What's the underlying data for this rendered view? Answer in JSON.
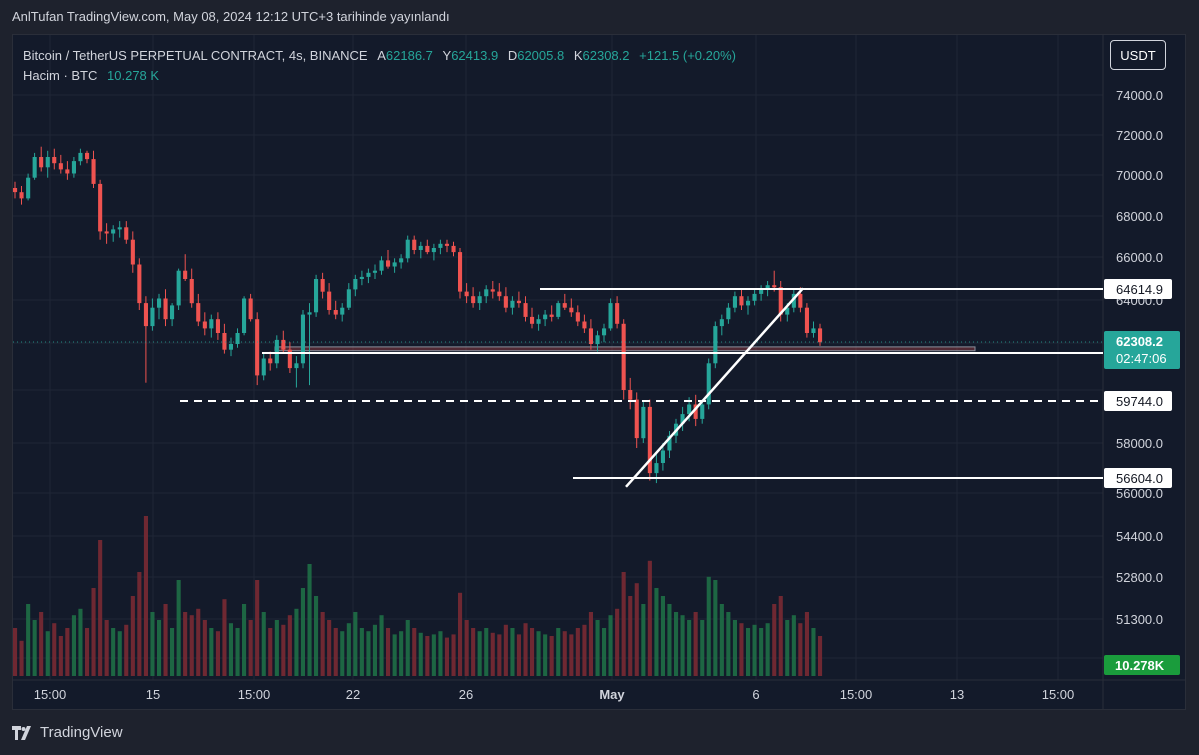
{
  "header": {
    "published": "AnlTufan TradingView.com, May 08, 2024 12:12 UTC+3 tarihinde yayınlandı"
  },
  "legend": {
    "symbol": "Bitcoin / TetherUS PERPETUAL CONTRACT, 4s, BINANCE",
    "open_label": "A",
    "open": "62186.7",
    "high_label": "Y",
    "high": "62413.9",
    "low_label": "D",
    "low": "62005.8",
    "close_label": "K",
    "close": "62308.2",
    "change": "+121.5 (+0.20%)",
    "volume_label": "Hacim · BTC",
    "volume": "10.278 K"
  },
  "currency_button": "USDT",
  "footer": {
    "brand": "TradingView"
  },
  "colors": {
    "up": "#26a69a",
    "down": "#ef5350",
    "background": "#131a2a",
    "axis_text": "#d1d4dc",
    "price_badge": "#26a69a",
    "volume_badge": "#1a9c3c"
  },
  "chart_data": {
    "type": "candlestick",
    "timeframe": "4h",
    "y_ticks": [
      74000,
      72000,
      70000,
      68000,
      66000,
      64000,
      58000,
      56000,
      54400,
      52800,
      51300
    ],
    "y_tick_labels": [
      "74000.0",
      "72000.0",
      "70000.0",
      "68000.0",
      "66000.0",
      "64000.0",
      "58000.0",
      "56000.0",
      "54400.0",
      "52800.0",
      "51300.0"
    ],
    "x_ticks": [
      "15:00",
      "15",
      "15:00",
      "22",
      "26",
      "May",
      "6",
      "15:00",
      "13",
      "15:00"
    ],
    "price_labels": [
      {
        "value": 64614.9,
        "text": "64614.9"
      },
      {
        "value": 61726.6,
        "text": "61726.6"
      },
      {
        "value": 59744.0,
        "text": "59744.0"
      },
      {
        "value": 56604.0,
        "text": "56604.0"
      }
    ],
    "current_price": {
      "value": 62308.2,
      "text": "62308.2",
      "countdown": "02:47:06"
    },
    "volume_badge": "10.278K",
    "horizontal_lines": [
      {
        "value": 64614.9,
        "style": "solid"
      },
      {
        "value": 61726.6,
        "style": "solid"
      },
      {
        "value": 59744.0,
        "style": "dashed"
      },
      {
        "value": 56604.0,
        "style": "solid"
      }
    ],
    "trendline": {
      "from": {
        "price": 56250
      },
      "to": {
        "price": 64650
      }
    },
    "support_zone": {
      "top": 62050,
      "bottom": 61850
    },
    "candles": [
      [
        69500,
        69800,
        69000,
        69300
      ],
      [
        69300,
        69600,
        68700,
        69000
      ],
      [
        69000,
        70200,
        68900,
        70000
      ],
      [
        70000,
        71200,
        69900,
        71000
      ],
      [
        71000,
        71500,
        70300,
        70500
      ],
      [
        70500,
        71300,
        70000,
        71000
      ],
      [
        71000,
        71400,
        70400,
        70700
      ],
      [
        70700,
        71100,
        70200,
        70400
      ],
      [
        70400,
        70800,
        69900,
        70200
      ],
      [
        70200,
        71000,
        70000,
        70800
      ],
      [
        70800,
        71400,
        70600,
        71200
      ],
      [
        71200,
        71300,
        70700,
        70900
      ],
      [
        70900,
        71300,
        69500,
        69700
      ],
      [
        69700,
        69900,
        67000,
        67400
      ],
      [
        67400,
        67800,
        66800,
        67300
      ],
      [
        67300,
        67700,
        66900,
        67500
      ],
      [
        67500,
        67900,
        67100,
        67600
      ],
      [
        67600,
        67900,
        66800,
        67000
      ],
      [
        67000,
        67400,
        65400,
        65800
      ],
      [
        65800,
        66100,
        63700,
        64000
      ],
      [
        64000,
        64300,
        60500,
        63000
      ],
      [
        63000,
        64200,
        62800,
        63800
      ],
      [
        63800,
        64400,
        63300,
        64200
      ],
      [
        64200,
        64600,
        63000,
        63300
      ],
      [
        63300,
        64000,
        63000,
        63900
      ],
      [
        63900,
        65600,
        63700,
        65500
      ],
      [
        65500,
        66300,
        65000,
        65100
      ],
      [
        65100,
        65600,
        63800,
        64000
      ],
      [
        64000,
        64400,
        63000,
        63200
      ],
      [
        63200,
        63600,
        62600,
        62900
      ],
      [
        62900,
        63500,
        62500,
        63300
      ],
      [
        63300,
        63600,
        62400,
        62700
      ],
      [
        62700,
        63100,
        61700,
        61900
      ],
      [
        61900,
        62500,
        61600,
        62200
      ],
      [
        62200,
        62900,
        62000,
        62700
      ],
      [
        62700,
        64300,
        62600,
        64200
      ],
      [
        64200,
        64400,
        63200,
        63300
      ],
      [
        63300,
        63600,
        60400,
        60800
      ],
      [
        60800,
        61700,
        60600,
        61500
      ],
      [
        61500,
        61800,
        61000,
        61300
      ],
      [
        61300,
        62600,
        61100,
        62400
      ],
      [
        62400,
        62800,
        61700,
        61900
      ],
      [
        61900,
        62300,
        60900,
        61100
      ],
      [
        61100,
        61600,
        60300,
        61300
      ],
      [
        61300,
        63700,
        61100,
        63500
      ],
      [
        63500,
        64000,
        60400,
        63600
      ],
      [
        63600,
        65300,
        63400,
        65100
      ],
      [
        65100,
        65400,
        64200,
        64500
      ],
      [
        64500,
        64900,
        63500,
        63700
      ],
      [
        63700,
        64100,
        63300,
        63500
      ],
      [
        63500,
        64000,
        63200,
        63800
      ],
      [
        63800,
        64900,
        63700,
        64600
      ],
      [
        64600,
        65300,
        64300,
        65100
      ],
      [
        65100,
        65500,
        64800,
        65200
      ],
      [
        65200,
        65600,
        64900,
        65400
      ],
      [
        65400,
        65800,
        65100,
        65500
      ],
      [
        65500,
        66200,
        65300,
        66000
      ],
      [
        66000,
        66500,
        65600,
        65700
      ],
      [
        65700,
        66100,
        65400,
        65900
      ],
      [
        65900,
        66300,
        65600,
        66100
      ],
      [
        66100,
        67200,
        65900,
        67000
      ],
      [
        67000,
        67200,
        66300,
        66500
      ],
      [
        66500,
        66900,
        66100,
        66700
      ],
      [
        66700,
        67000,
        66300,
        66400
      ],
      [
        66400,
        66800,
        66000,
        66600
      ],
      [
        66600,
        67000,
        66300,
        66800
      ],
      [
        66800,
        67000,
        66400,
        66700
      ],
      [
        66700,
        66900,
        66200,
        66400
      ],
      [
        66400,
        66600,
        64200,
        64500
      ],
      [
        64500,
        64900,
        64000,
        64300
      ],
      [
        64300,
        64700,
        63800,
        64000
      ],
      [
        64000,
        64500,
        63700,
        64300
      ],
      [
        64300,
        64800,
        64000,
        64600
      ],
      [
        64600,
        65000,
        64200,
        64500
      ],
      [
        64500,
        64900,
        64100,
        64300
      ],
      [
        64300,
        64700,
        63600,
        63800
      ],
      [
        63800,
        64300,
        63500,
        64100
      ],
      [
        64100,
        64500,
        63800,
        64000
      ],
      [
        64000,
        64300,
        63200,
        63400
      ],
      [
        63400,
        63800,
        62900,
        63100
      ],
      [
        63100,
        63500,
        62800,
        63300
      ],
      [
        63300,
        63700,
        63000,
        63500
      ],
      [
        63500,
        63900,
        63200,
        63400
      ],
      [
        63400,
        64100,
        63300,
        64000
      ],
      [
        64000,
        64400,
        63700,
        63800
      ],
      [
        63800,
        64200,
        63400,
        63600
      ],
      [
        63600,
        63900,
        63000,
        63200
      ],
      [
        63200,
        63500,
        62700,
        62900
      ],
      [
        62900,
        63300,
        61900,
        62200
      ],
      [
        62200,
        62800,
        61800,
        62600
      ],
      [
        62600,
        63100,
        62300,
        62900
      ],
      [
        62900,
        64200,
        62800,
        64000
      ],
      [
        64000,
        64300,
        62900,
        63100
      ],
      [
        63100,
        63300,
        59800,
        60200
      ],
      [
        60200,
        60700,
        59400,
        59800
      ],
      [
        59800,
        60100,
        57800,
        58200
      ],
      [
        58200,
        59700,
        58000,
        59500
      ],
      [
        59500,
        59800,
        56500,
        56800
      ],
      [
        56800,
        57600,
        56400,
        57200
      ],
      [
        57200,
        58000,
        56900,
        57700
      ],
      [
        57700,
        58500,
        57400,
        58300
      ],
      [
        58300,
        59000,
        58000,
        58800
      ],
      [
        58800,
        59500,
        58500,
        59200
      ],
      [
        59200,
        59900,
        58900,
        59600
      ],
      [
        59600,
        60000,
        58700,
        59000
      ],
      [
        59000,
        59800,
        58800,
        59600
      ],
      [
        59600,
        61500,
        59400,
        61300
      ],
      [
        61300,
        63200,
        61100,
        63000
      ],
      [
        63000,
        63500,
        62600,
        63300
      ],
      [
        63300,
        64000,
        63100,
        63800
      ],
      [
        63800,
        64500,
        63600,
        64300
      ],
      [
        64300,
        64600,
        63700,
        63900
      ],
      [
        63900,
        64300,
        63500,
        64100
      ],
      [
        64100,
        64600,
        63900,
        64400
      ],
      [
        64400,
        64800,
        64100,
        64600
      ],
      [
        64600,
        65000,
        64300,
        64800
      ],
      [
        64800,
        65500,
        64500,
        64700
      ],
      [
        64700,
        65000,
        63200,
        63500
      ],
      [
        63500,
        64000,
        63200,
        63800
      ],
      [
        63800,
        64600,
        63600,
        64400
      ],
      [
        64400,
        64700,
        63600,
        63800
      ],
      [
        63800,
        64000,
        62500,
        62700
      ],
      [
        62700,
        63200,
        62500,
        62900
      ],
      [
        62900,
        63100,
        62100,
        62300
      ]
    ],
    "volumes": [
      0.3,
      0.22,
      0.45,
      0.35,
      0.4,
      0.28,
      0.33,
      0.25,
      0.3,
      0.38,
      0.42,
      0.3,
      0.55,
      0.85,
      0.35,
      0.3,
      0.28,
      0.32,
      0.5,
      0.65,
      1.0,
      0.4,
      0.35,
      0.45,
      0.3,
      0.6,
      0.4,
      0.38,
      0.42,
      0.35,
      0.3,
      0.28,
      0.48,
      0.33,
      0.3,
      0.45,
      0.35,
      0.6,
      0.4,
      0.3,
      0.35,
      0.32,
      0.38,
      0.42,
      0.55,
      0.7,
      0.5,
      0.4,
      0.35,
      0.3,
      0.28,
      0.33,
      0.4,
      0.3,
      0.28,
      0.32,
      0.38,
      0.3,
      0.26,
      0.28,
      0.35,
      0.3,
      0.27,
      0.25,
      0.26,
      0.28,
      0.24,
      0.26,
      0.52,
      0.35,
      0.3,
      0.28,
      0.3,
      0.27,
      0.26,
      0.32,
      0.3,
      0.26,
      0.33,
      0.3,
      0.28,
      0.26,
      0.25,
      0.3,
      0.28,
      0.26,
      0.3,
      0.32,
      0.4,
      0.35,
      0.3,
      0.38,
      0.42,
      0.65,
      0.5,
      0.58,
      0.45,
      0.72,
      0.55,
      0.5,
      0.45,
      0.4,
      0.38,
      0.35,
      0.4,
      0.35,
      0.62,
      0.6,
      0.45,
      0.4,
      0.35,
      0.33,
      0.3,
      0.32,
      0.3,
      0.33,
      0.45,
      0.5,
      0.35,
      0.38,
      0.33,
      0.4,
      0.3,
      0.25
    ]
  }
}
